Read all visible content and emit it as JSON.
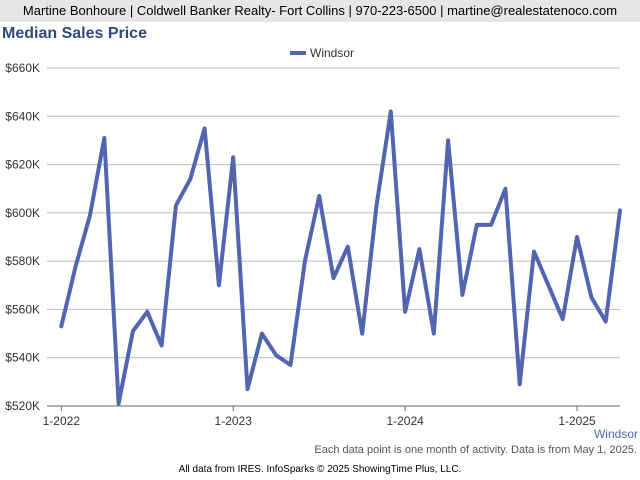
{
  "header": {
    "text": "Martine Bonhoure | Coldwell Banker Realty- Fort Collins | 970-223-6500 | martine@realestatenoco.com"
  },
  "colors": {
    "series": "#5166ae",
    "header_bg": "#e6e6e6",
    "title": "#2f4a7a",
    "grid": "#bbbbbb"
  },
  "chart_data": {
    "type": "line",
    "title": "Median Sales Price",
    "legend_position": "top-center",
    "grid": true,
    "ylim": [
      520000,
      660000
    ],
    "yticks": [
      520000,
      540000,
      560000,
      580000,
      600000,
      620000,
      640000,
      660000
    ],
    "ytick_labels": [
      "$520K",
      "$540K",
      "$560K",
      "$580K",
      "$600K",
      "$620K",
      "$640K",
      "$660K"
    ],
    "xticks": [
      "2022-01",
      "2023-01",
      "2024-01",
      "2025-01"
    ],
    "xtick_labels": [
      "1-2022",
      "1-2023",
      "1-2024",
      "1-2025"
    ],
    "x_start": "2021-12",
    "x_end": "2025-04",
    "end_label": "Windsor",
    "series": [
      {
        "name": "Windsor",
        "x": [
          "2022-01",
          "2022-02",
          "2022-03",
          "2022-04",
          "2022-05",
          "2022-06",
          "2022-07",
          "2022-08",
          "2022-09",
          "2022-10",
          "2022-11",
          "2022-12",
          "2023-01",
          "2023-02",
          "2023-03",
          "2023-04",
          "2023-05",
          "2023-06",
          "2023-07",
          "2023-08",
          "2023-09",
          "2023-10",
          "2023-11",
          "2023-12",
          "2024-01",
          "2024-02",
          "2024-03",
          "2024-04",
          "2024-05",
          "2024-06",
          "2024-07",
          "2024-08",
          "2024-09",
          "2024-10",
          "2024-11",
          "2024-12",
          "2025-01",
          "2025-02",
          "2025-03",
          "2025-04"
        ],
        "values": [
          553000,
          578000,
          599000,
          631000,
          521000,
          551000,
          559000,
          545000,
          603000,
          614000,
          635000,
          570000,
          623000,
          527000,
          550000,
          541000,
          537000,
          580000,
          607000,
          573000,
          586000,
          550000,
          603000,
          642000,
          559000,
          585000,
          550000,
          630000,
          566000,
          595000,
          595000,
          610000,
          529000,
          584000,
          570000,
          556000,
          590000,
          565000,
          555000,
          601000
        ]
      }
    ]
  },
  "footnote": "Each data point is one month of activity. Data is from May 1, 2025.",
  "source_note": "All data from IRES. InfoSparks © 2025 ShowingTime Plus, LLC."
}
